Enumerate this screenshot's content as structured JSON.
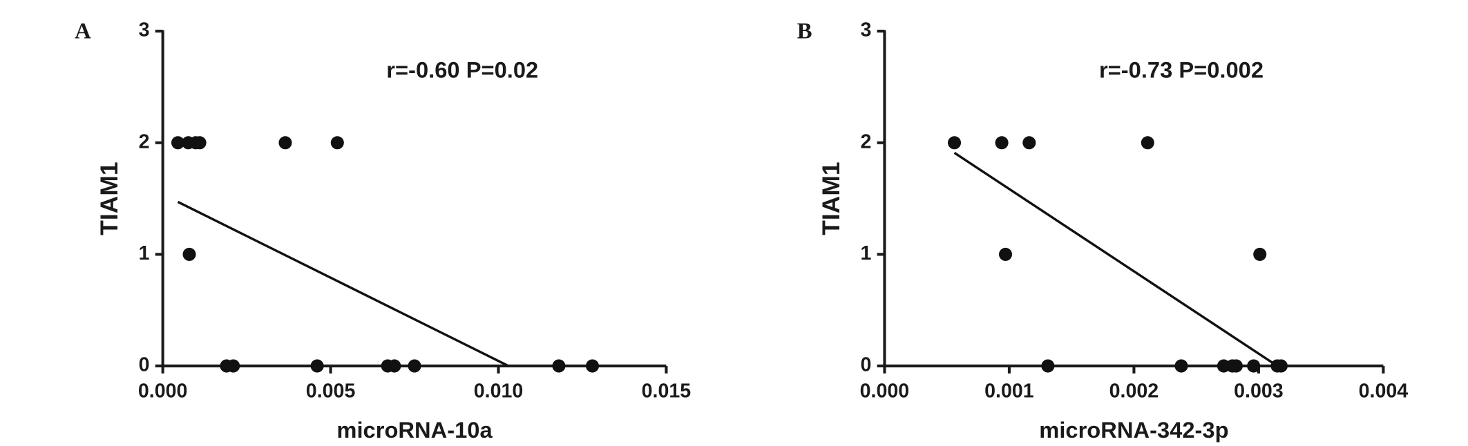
{
  "chart_data": [
    {
      "type": "scatter",
      "panel_label": "A",
      "annotation": "r=-0.60 P=0.02",
      "xlabel": "microRNA-10a",
      "ylabel": "TIAM1",
      "xlim": [
        0,
        0.015
      ],
      "xticks": [
        {
          "value": 0,
          "label": "0.000"
        },
        {
          "value": 0.005,
          "label": "0.005"
        },
        {
          "value": 0.01,
          "label": "0.010"
        },
        {
          "value": 0.015,
          "label": "0.015"
        }
      ],
      "ylim": [
        0,
        3
      ],
      "yticks": [
        0,
        1,
        2,
        3
      ],
      "series": [
        {
          "color": "#111111",
          "x": [
            0.00045,
            0.00076,
            0.00098,
            0.0011,
            0.00365,
            0.0052,
            0.00079,
            0.0019,
            0.0021,
            0.0046,
            0.0067,
            0.0069,
            0.0075,
            0.0118,
            0.0128
          ],
          "values": [
            2,
            2,
            2,
            2,
            2,
            2,
            1,
            0,
            0,
            0,
            0,
            0,
            0,
            0,
            0
          ]
        }
      ],
      "fit": {
        "color": "#111111",
        "x": [
          0.00045,
          0.0103
        ],
        "values": [
          1.47,
          0
        ]
      }
    },
    {
      "type": "scatter",
      "panel_label": "B",
      "annotation": "r=-0.73 P=0.002",
      "xlabel": "microRNA-342-3p",
      "ylabel": "TIAM1",
      "xlim": [
        0,
        0.004
      ],
      "xticks": [
        {
          "value": 0,
          "label": "0.000"
        },
        {
          "value": 0.001,
          "label": "0.001"
        },
        {
          "value": 0.002,
          "label": "0.002"
        },
        {
          "value": 0.003,
          "label": "0.003"
        },
        {
          "value": 0.004,
          "label": "0.004"
        }
      ],
      "ylim": [
        0,
        3
      ],
      "yticks": [
        0,
        1,
        2,
        3
      ],
      "series": [
        {
          "color": "#111111",
          "x": [
            0.00056,
            0.00094,
            0.00116,
            0.00211,
            0.00097,
            0.00301,
            0.00131,
            0.00238,
            0.00272,
            0.00279,
            0.00282,
            0.00296,
            0.00315,
            0.00318
          ],
          "values": [
            2,
            2,
            2,
            2,
            1,
            1,
            0,
            0,
            0,
            0,
            0,
            0,
            0,
            0
          ]
        }
      ],
      "fit": {
        "color": "#111111",
        "x": [
          0.00056,
          0.00315
        ],
        "values": [
          1.91,
          0
        ]
      }
    }
  ]
}
